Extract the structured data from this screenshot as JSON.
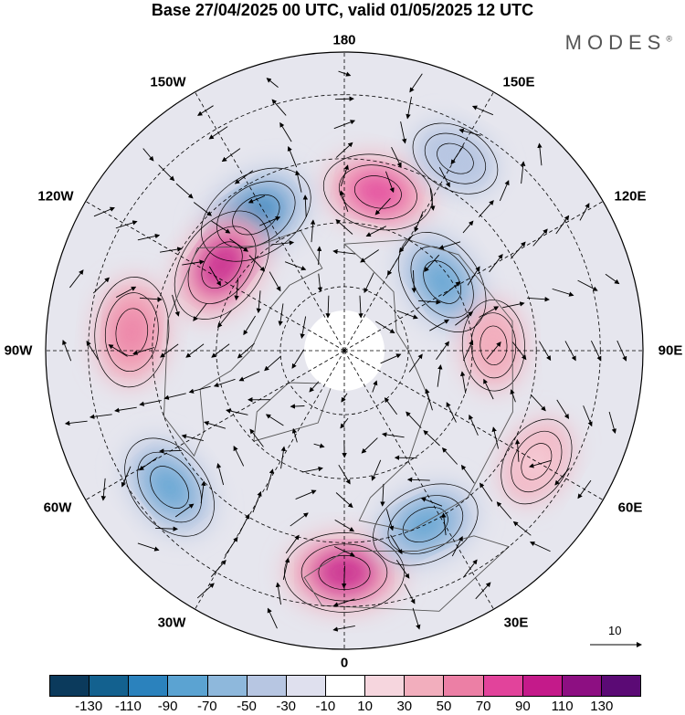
{
  "title": "Base 27/04/2025 00 UTC, valid 01/05/2025 12 UTC",
  "brand": "MODES",
  "brand_mark": "®",
  "longitude_labels": {
    "lon_180": "180",
    "lon_150e": "150E",
    "lon_120e": "120E",
    "lon_90e": "90E",
    "lon_60e": "60E",
    "lon_30e": "30E",
    "lon_0": "0",
    "lon_30w": "30W",
    "lon_60w": "60W",
    "lon_90w": "90W",
    "lon_120w": "120W",
    "lon_150w": "150W"
  },
  "vector_scale_label": "10",
  "colorbar": {
    "colors": [
      "#0b3a5c",
      "#13618f",
      "#2b82bd",
      "#5ba3d2",
      "#8eb8dc",
      "#b7c6e2",
      "#dfe0ee",
      "#ffffff",
      "#f6d6de",
      "#f2aebd",
      "#ec7fa5",
      "#e2439b",
      "#c41a8a",
      "#8d0f82",
      "#5b0a75"
    ],
    "ticks": [
      "-130",
      "-110",
      "-90",
      "-70",
      "-50",
      "-30",
      "-10",
      "10",
      "30",
      "50",
      "70",
      "90",
      "110",
      "130"
    ]
  },
  "anomaly_centers": [
    {
      "lon": 168,
      "lat": 52,
      "value": 70,
      "color": "#e2439b"
    },
    {
      "lon": -147,
      "lat": 52,
      "value": -90,
      "color": "#2b82bd"
    },
    {
      "lon": -125,
      "lat": 55,
      "value": 90,
      "color": "#c41a8a"
    },
    {
      "lon": -95,
      "lat": 40,
      "value": 70,
      "color": "#ec7fa5"
    },
    {
      "lon": -52,
      "lat": 38,
      "value": -70,
      "color": "#5ba3d2"
    },
    {
      "lon": 0,
      "lat": 38,
      "value": 90,
      "color": "#c41a8a"
    },
    {
      "lon": 25,
      "lat": 45,
      "value": -70,
      "color": "#5ba3d2"
    },
    {
      "lon": 125,
      "lat": 62,
      "value": -70,
      "color": "#5ba3d2"
    },
    {
      "lon": 92,
      "lat": 55,
      "value": 30,
      "color": "#f2aebd"
    },
    {
      "lon": 60,
      "lat": 38,
      "value": 30,
      "color": "#f6d6de"
    },
    {
      "lon": 150,
      "lat": 38,
      "value": -30,
      "color": "#b7c6e2"
    }
  ]
}
